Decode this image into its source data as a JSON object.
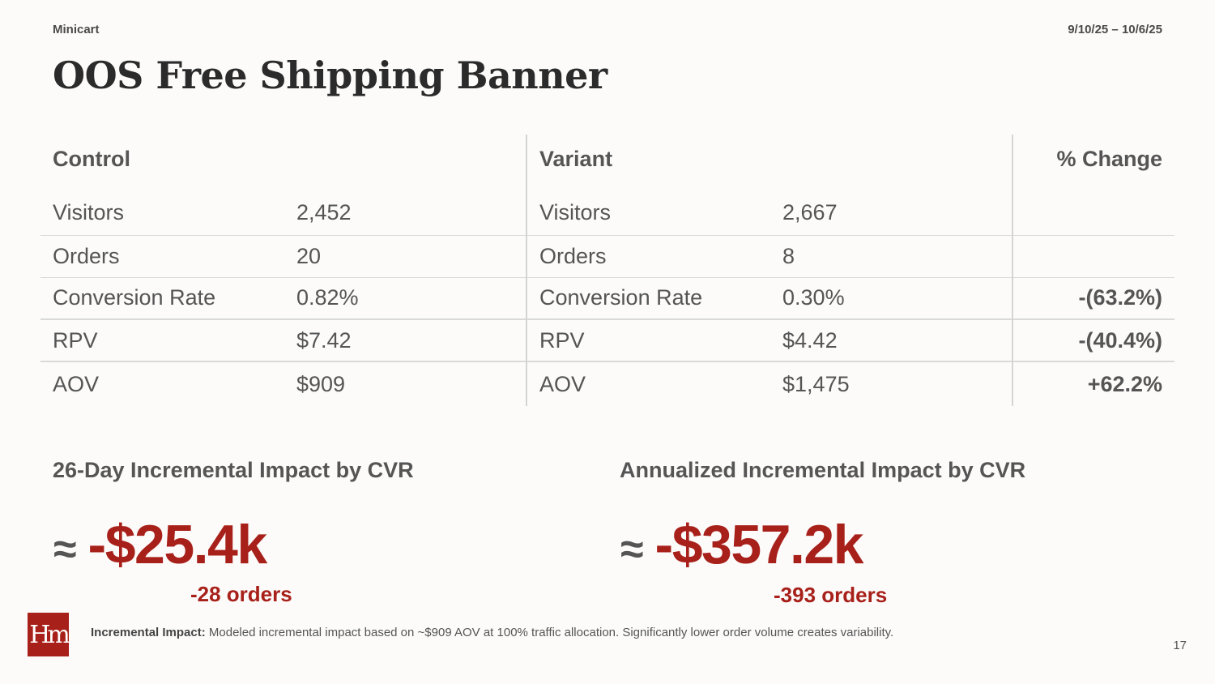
{
  "header": {
    "section": "Minicart",
    "date_range": "9/10/25 – 10/6/25",
    "title": "OOS Free Shipping Banner"
  },
  "table": {
    "control_header": "Control",
    "variant_header": "Variant",
    "change_header": "% Change",
    "rows": [
      {
        "metric": "Visitors",
        "control": "2,452",
        "variant": "2,667",
        "change": "",
        "change_status": "none"
      },
      {
        "metric": "Orders",
        "control": "20",
        "variant": "8",
        "change": "",
        "change_status": "none"
      },
      {
        "metric": "Conversion Rate",
        "control": "0.82%",
        "variant": "0.30%",
        "change": "-(63.2%)",
        "change_status": "negative"
      },
      {
        "metric": "RPV",
        "control": "$7.42",
        "variant": "$4.42",
        "change": "-(40.4%)",
        "change_status": "negative"
      },
      {
        "metric": "AOV",
        "control": "$909",
        "variant": "$1,475",
        "change": "+62.2%",
        "change_status": "positive"
      }
    ]
  },
  "impact": {
    "approx_symbol": "≈",
    "period": {
      "heading": "26-Day Incremental Impact by CVR",
      "value": "-$25.4k",
      "orders": "-28 orders"
    },
    "annual": {
      "heading": "Annualized Incremental Impact by CVR",
      "value": "-$357.2k",
      "orders": "-393 orders"
    }
  },
  "footer": {
    "logo_text": "Hm",
    "note_label": "Incremental Impact:",
    "note_text": " Modeled incremental impact based on ~$909 AOV at 100% traffic allocation. Significantly lower order volume creates variability.",
    "page_number": "17"
  },
  "colors": {
    "negative": "#a8201a",
    "positive": "#3d7a2a",
    "brand": "#a8201a"
  }
}
